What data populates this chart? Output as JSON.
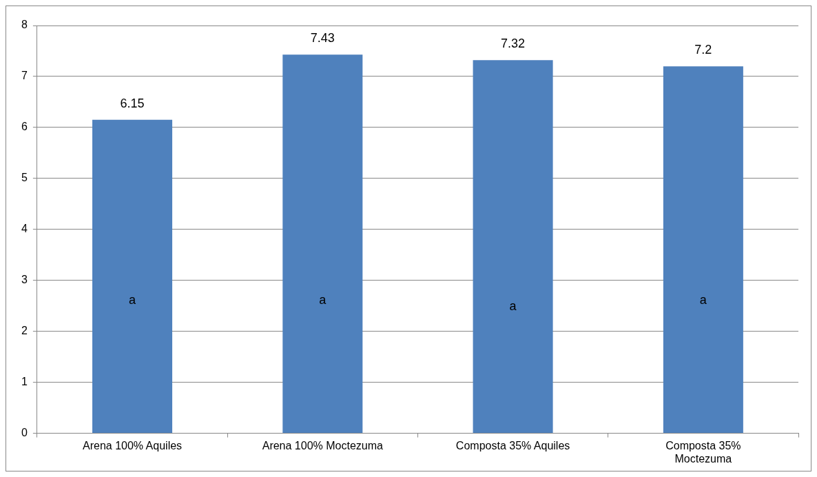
{
  "chart_data": {
    "type": "bar",
    "categories": [
      "Arena 100% Aquiles",
      "Arena 100% Moctezuma",
      "Composta 35% Aquiles",
      "Composta 35% Moctezuma"
    ],
    "values": [
      6.15,
      7.43,
      7.32,
      7.2
    ],
    "color": "#4f81bd",
    "ylim": [
      0,
      8
    ],
    "yticks": [
      0,
      1,
      2,
      3,
      4,
      5,
      6,
      7,
      8
    ],
    "grid": "y",
    "legend": false,
    "data_labels": true,
    "annotations": [
      "a",
      "a",
      "a",
      "a"
    ]
  }
}
